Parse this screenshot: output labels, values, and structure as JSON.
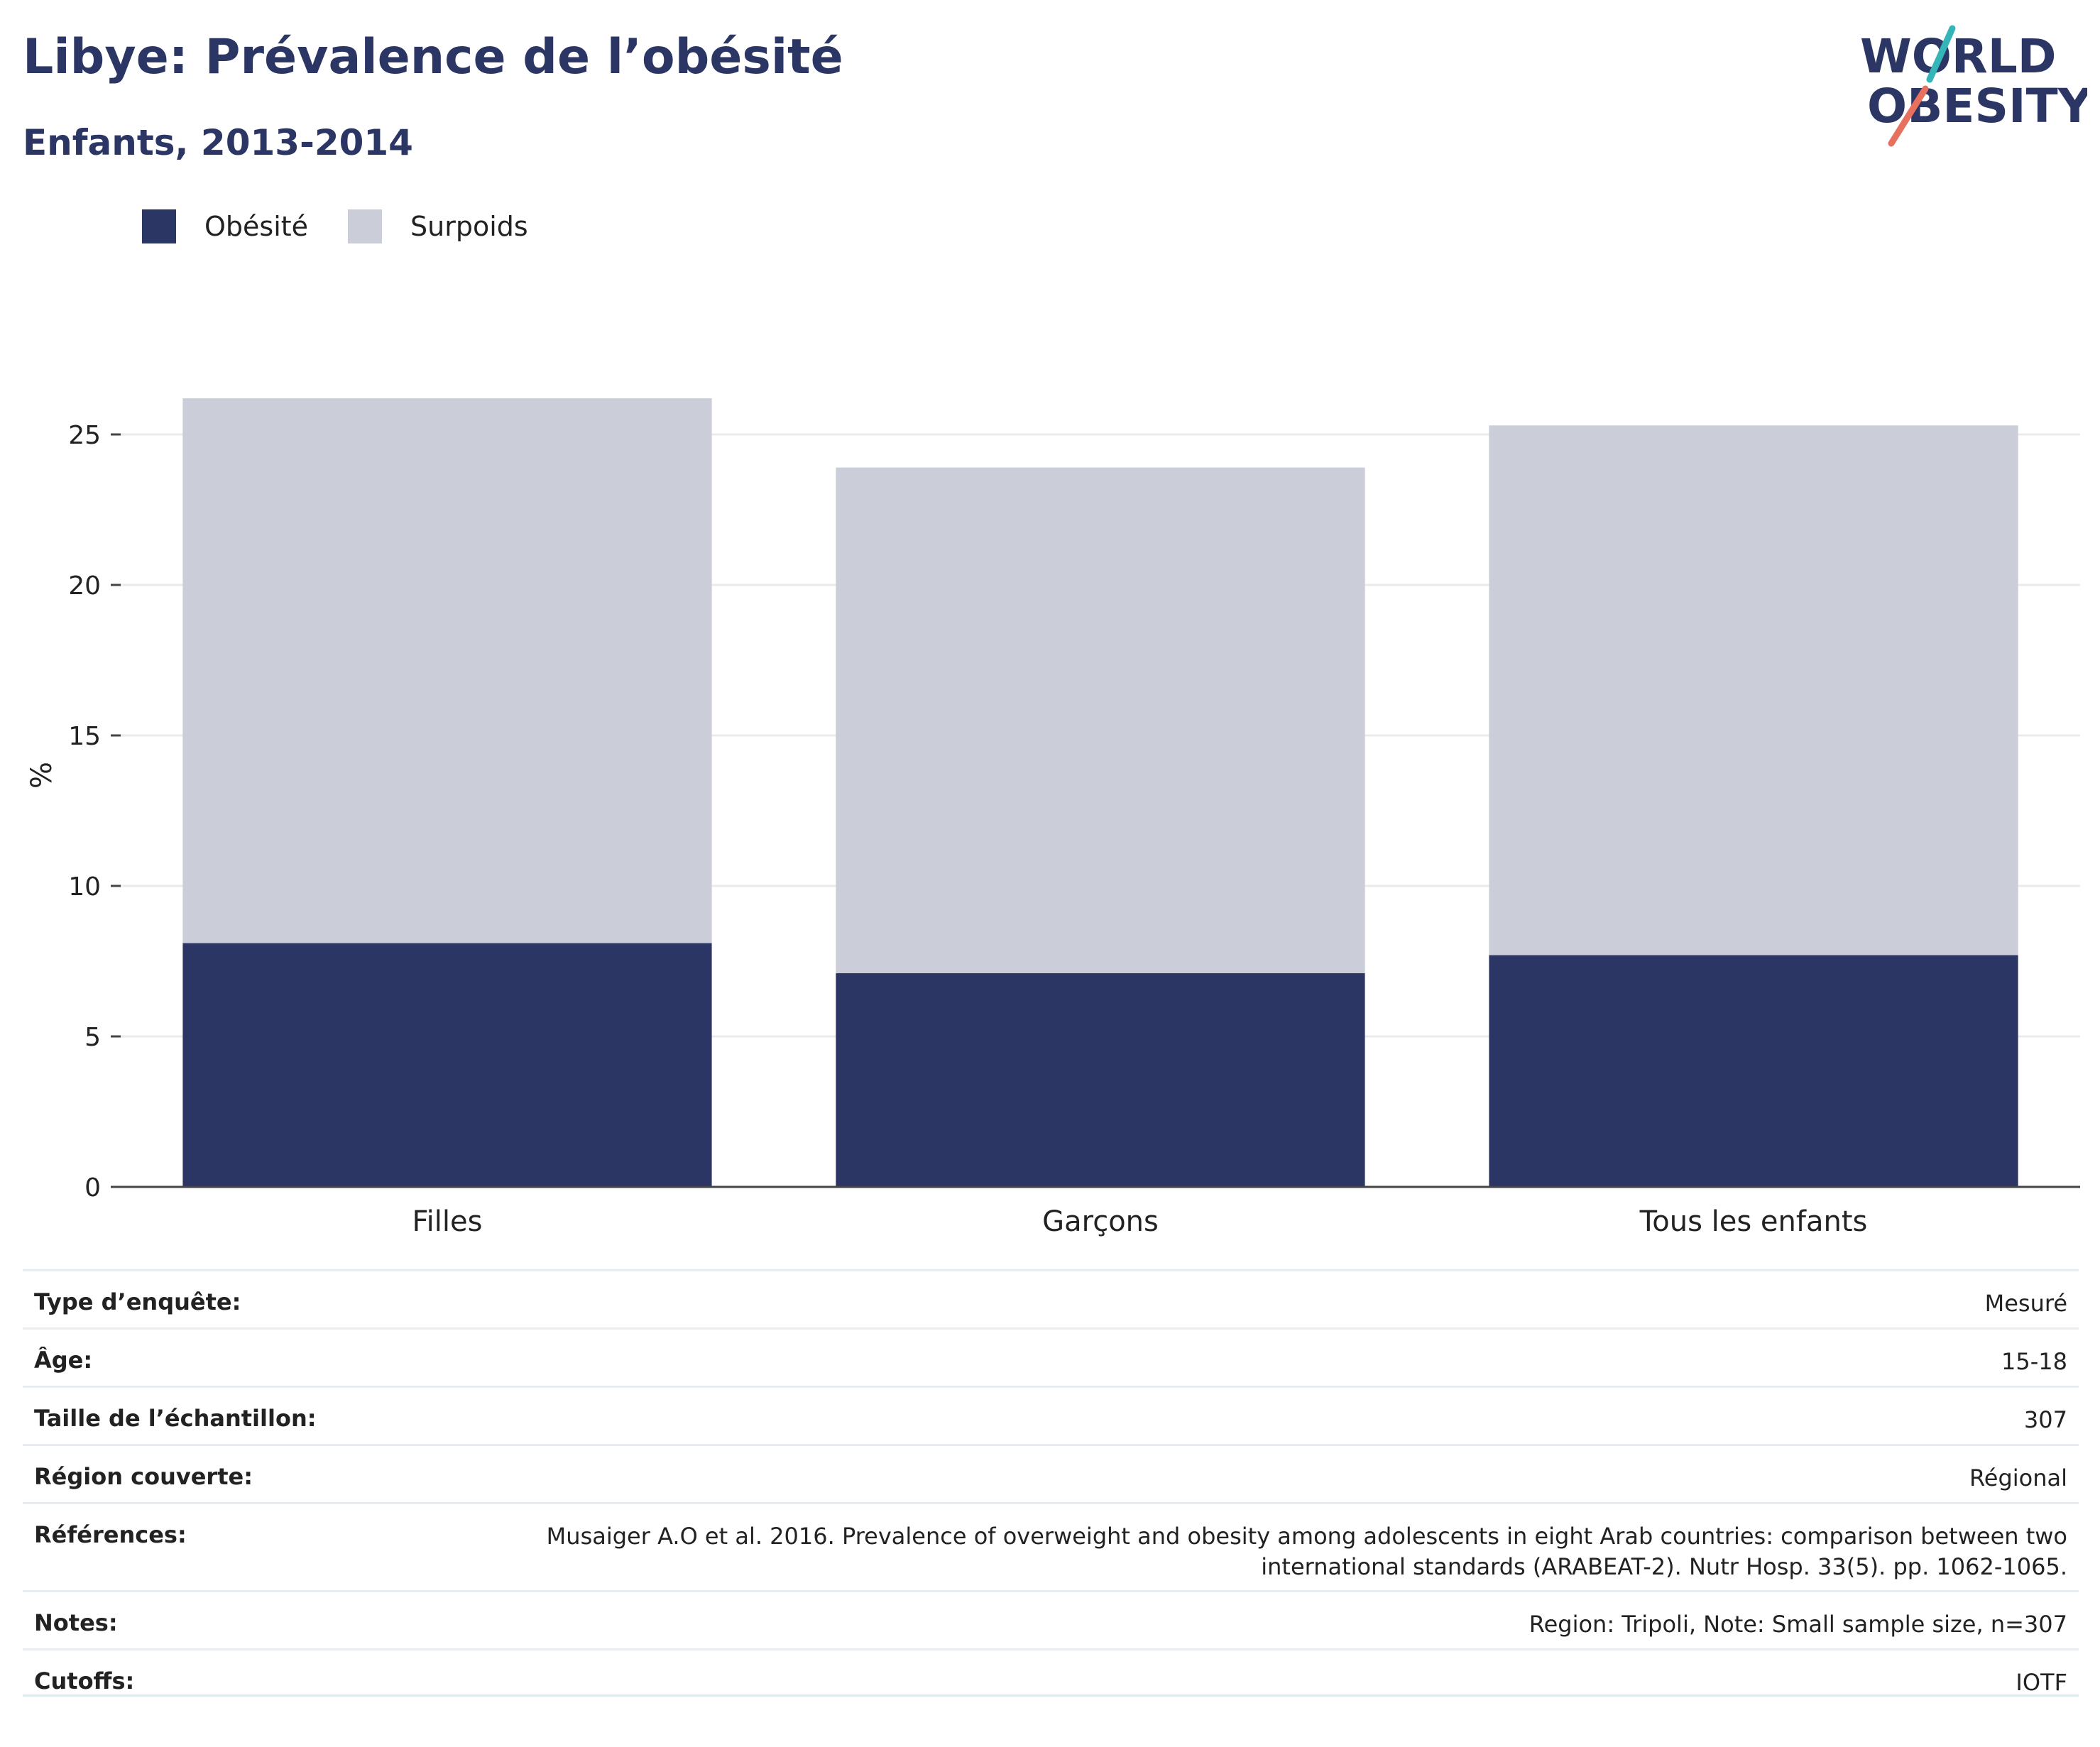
{
  "header": {
    "title": "Libye: Prévalence de l’obésité",
    "subtitle": "Enfants, 2013-2014"
  },
  "logo": {
    "line1": "WORLD",
    "line2": "OBESITY"
  },
  "colors": {
    "obesity": "#2b3664",
    "overweight": "#cbcdd9",
    "grid": "#ebebeb",
    "axis": "#444444",
    "accent_teal": "#35b5b8",
    "accent_coral": "#e8705e"
  },
  "chart_data": {
    "type": "bar",
    "stacked": true,
    "categories": [
      "Filles",
      "Garçons",
      "Tous les enfants"
    ],
    "series": [
      {
        "name": "Obésité",
        "values": [
          8.1,
          7.1,
          7.7
        ]
      },
      {
        "name": "Surpoids",
        "values": [
          18.1,
          16.8,
          17.6
        ]
      }
    ],
    "ylabel": "%",
    "ylim": [
      0,
      27
    ],
    "yticks": [
      0,
      5,
      10,
      15,
      20,
      25
    ],
    "grid": true,
    "legend": "top-left"
  },
  "meta": [
    {
      "key": "Type d’enquête:",
      "value": "Mesuré"
    },
    {
      "key": "Âge:",
      "value": "15-18"
    },
    {
      "key": "Taille de l’échantillon:",
      "value": "307"
    },
    {
      "key": "Région couverte:",
      "value": "Régional"
    },
    {
      "key": "Références:",
      "value": "Musaiger A.O et al. 2016. Prevalence of overweight and obesity among adolescents in eight Arab countries: comparison between two international standards (ARABEAT-2). Nutr Hosp. 33(5). pp. 1062-1065."
    },
    {
      "key": "Notes:",
      "value": "Region: Tripoli, Note: Small sample size, n=307"
    },
    {
      "key": "Cutoffs:",
      "value": "IOTF"
    }
  ]
}
